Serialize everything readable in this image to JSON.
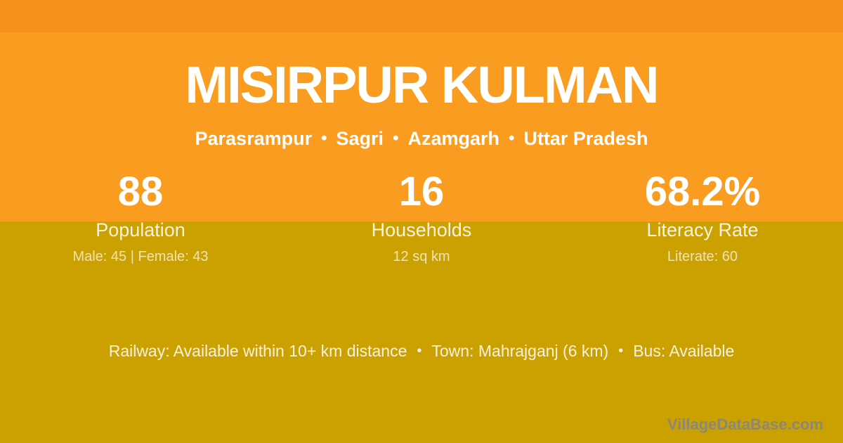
{
  "colors": {
    "top_strip": "#f5921c",
    "orange": "#f99c1f",
    "olive": "#cba102",
    "white": "#ffffff",
    "cream": "#f8f1dc",
    "watermark": "#8c8874"
  },
  "header": {
    "title": "MISIRPUR KULMAN"
  },
  "subtitle": {
    "separator": "•",
    "items": [
      "Parasrampur",
      "Sagri",
      "Azamgarh",
      "Uttar Pradesh"
    ]
  },
  "stats": [
    {
      "value": "88",
      "label": "Population",
      "detail": "Male: 45 | Female: 43"
    },
    {
      "value": "16",
      "label": "Households",
      "detail": "12 sq km"
    },
    {
      "value": "68.2%",
      "label": "Literacy Rate",
      "detail": "Literate: 60"
    }
  ],
  "footer": {
    "separator": "•",
    "items": [
      "Railway: Available within 10+ km distance",
      "Town: Mahrajganj (6 km)",
      "Bus: Available"
    ]
  },
  "watermark": "VillageDataBase.com"
}
